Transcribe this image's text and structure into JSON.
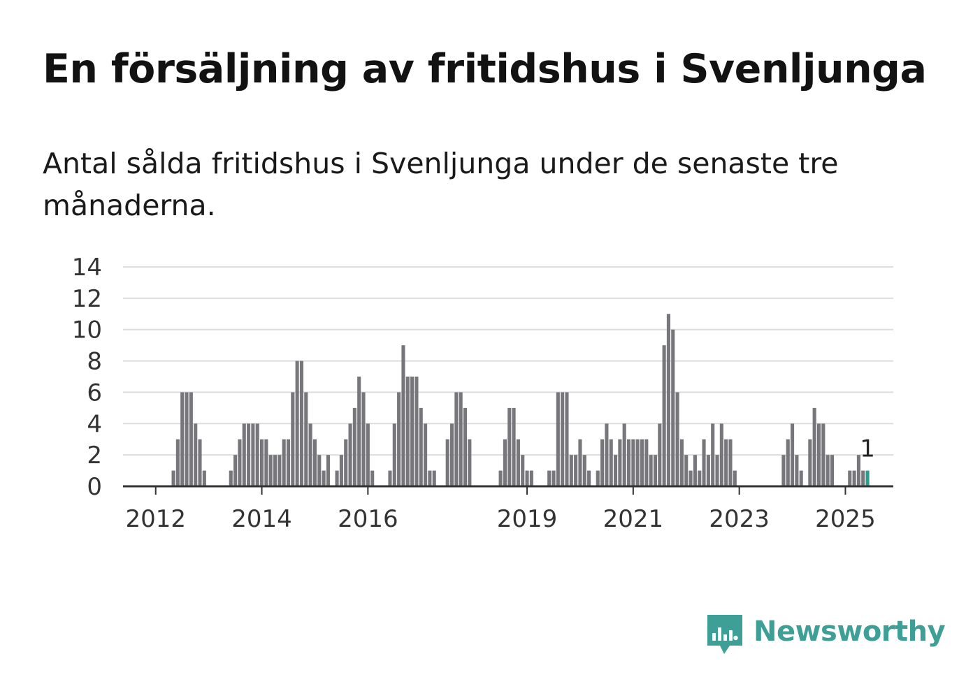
{
  "header": {
    "title": "En försäljning av fritidshus i Svenljunga",
    "subtitle": "Antal sålda fritidshus i Svenljunga under de senaste tre månaderna."
  },
  "brand": {
    "name": "Newsworthy",
    "icon": "newsworthy-logo-icon",
    "color": "#3e9f96"
  },
  "colors": {
    "bar": "#77767b",
    "highlight": "#2a9d8f",
    "grid": "#dddddd",
    "axis": "#333333"
  },
  "chart_data": {
    "type": "bar",
    "x_start": "2011-07",
    "x_end": "2025-05",
    "x_tick_labels": [
      "2012",
      "2014",
      "2016",
      "2019",
      "2021",
      "2023",
      "2025"
    ],
    "y_tick_labels": [
      "0",
      "2",
      "4",
      "6",
      "8",
      "10",
      "12",
      "14"
    ],
    "ylim": [
      0,
      14
    ],
    "grid": true,
    "highlight_label": "1",
    "series": [
      {
        "values": [
          0,
          0,
          0,
          0,
          0,
          0,
          0,
          0,
          0,
          0,
          1,
          3,
          6,
          6,
          6,
          4,
          3,
          1,
          0,
          0,
          0,
          0,
          0,
          1,
          2,
          3,
          4,
          4,
          4,
          4,
          3,
          3,
          2,
          2,
          2,
          3,
          3,
          6,
          8,
          8,
          6,
          4,
          3,
          2,
          1,
          2,
          0,
          1,
          2,
          3,
          4,
          5,
          7,
          6,
          4,
          1,
          0,
          0,
          0,
          1,
          4,
          6,
          9,
          7,
          7,
          7,
          5,
          4,
          1,
          1,
          0,
          0,
          3,
          4,
          6,
          6,
          5,
          3,
          0,
          0,
          0,
          0,
          0,
          0,
          1,
          3,
          5,
          5,
          3,
          2,
          1,
          1,
          0,
          0,
          0,
          1,
          1,
          6,
          6,
          6,
          2,
          2,
          3,
          2,
          1,
          0,
          1,
          3,
          4,
          3,
          2,
          3,
          4,
          3,
          3,
          3,
          3,
          3,
          2,
          2,
          4,
          9,
          11,
          10,
          6,
          3,
          2,
          1,
          2,
          1,
          3,
          2,
          4,
          2,
          4,
          3,
          3,
          1,
          0,
          0,
          0,
          0,
          0,
          0,
          0,
          0,
          0,
          0,
          2,
          3,
          4,
          2,
          1,
          0,
          3,
          5,
          4,
          4,
          2,
          2,
          0,
          0,
          0,
          1,
          1,
          2,
          1,
          1
        ]
      }
    ]
  }
}
